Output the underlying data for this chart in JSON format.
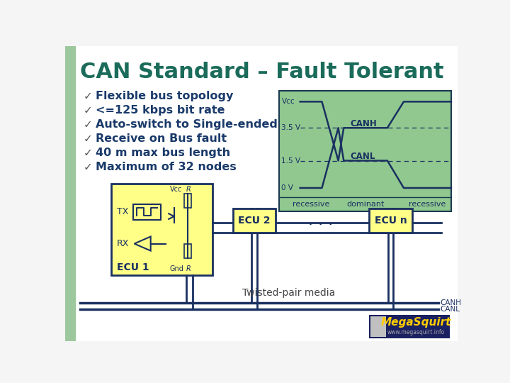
{
  "title": "CAN Standard – Fault Tolerant",
  "title_color": "#1a6b5a",
  "title_fontsize": 22,
  "bg_color": "#f0f0f0",
  "left_strip_color": "#9dc89d",
  "bullet_items": [
    "Flexible bus topology",
    "<=125 kbps bit rate",
    "Auto-switch to Single-ended",
    "Receive on Bus fault",
    "40 m max bus length",
    "Maximum of 32 nodes"
  ],
  "bullet_color": "#1a3a6a",
  "bullet_fontsize": 11.5,
  "check_color": "#555555",
  "waveform_bg": "#90c890",
  "waveform_border": "#1a3a50",
  "waveform_line_color": "#1a3060",
  "ecu_fill": "#ffff88",
  "ecu_border": "#1a3060",
  "bus_line_color": "#1a3060",
  "logo_bg": "#1a2060"
}
